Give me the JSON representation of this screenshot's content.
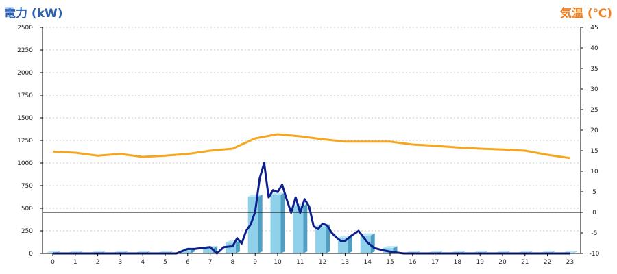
{
  "chart_data": {
    "type": "bar-line-combo",
    "left_axis_title": "電力 (kW)",
    "right_axis_title": "気温 (℃)",
    "left_ylim": [
      0,
      2500
    ],
    "left_ticks": [
      "0",
      "250",
      "500",
      "750",
      "1000",
      "1250",
      "1500",
      "1750",
      "2000",
      "2250",
      "2500"
    ],
    "right_ylim": [
      -10,
      45
    ],
    "right_ticks": [
      "-10",
      "-5",
      "0",
      "5",
      "10",
      "15",
      "20",
      "25",
      "30",
      "35",
      "40",
      "45"
    ],
    "x_ticks": [
      "0",
      "1",
      "2",
      "3",
      "4",
      "5",
      "6",
      "7",
      "8",
      "9",
      "10",
      "11",
      "12",
      "13",
      "14",
      "15",
      "16",
      "17",
      "18",
      "19",
      "20",
      "21",
      "22",
      "23"
    ],
    "grid": "horizontal dotted",
    "colors": {
      "left_title": "#2b5fb0",
      "right_title": "#f07d1e",
      "bar_face": "#8fd0ea",
      "bar_side": "#4e9fc3",
      "bar_top": "#bfe6f6",
      "power_line": "#0d1f8c",
      "temperature_line": "#f5a61e",
      "zero_temp_line": "#000000"
    },
    "hourly_power_bars": {
      "x": [
        0,
        1,
        2,
        3,
        4,
        5,
        6,
        7,
        8,
        9,
        10,
        11,
        12,
        13,
        14,
        15,
        16,
        17,
        18,
        19,
        20,
        21,
        22,
        23
      ],
      "values": [
        5,
        5,
        5,
        5,
        5,
        5,
        35,
        60,
        120,
        630,
        650,
        525,
        300,
        175,
        200,
        60,
        5,
        5,
        5,
        5,
        5,
        5,
        5,
        5
      ]
    },
    "power_line": {
      "x": [
        0,
        1,
        2,
        3,
        4,
        5,
        5.5,
        6,
        6.3,
        6.6,
        7,
        7.3,
        7.6,
        8,
        8.2,
        8.4,
        8.6,
        8.8,
        9,
        9.2,
        9.4,
        9.6,
        9.8,
        10,
        10.2,
        10.4,
        10.6,
        10.8,
        11,
        11.2,
        11.4,
        11.6,
        11.8,
        12,
        12.2,
        12.4,
        12.6,
        12.8,
        13,
        13.3,
        13.6,
        14,
        14.3,
        14.6,
        15,
        15.3,
        15.6,
        16,
        17,
        18,
        19,
        20,
        21,
        22,
        23
      ],
      "y": [
        0,
        0,
        0,
        0,
        0,
        0,
        0,
        50,
        50,
        60,
        70,
        0,
        70,
        80,
        170,
        110,
        250,
        320,
        460,
        830,
        1000,
        620,
        700,
        680,
        760,
        600,
        450,
        620,
        450,
        600,
        520,
        300,
        270,
        330,
        310,
        230,
        180,
        140,
        140,
        200,
        250,
        120,
        60,
        40,
        20,
        10,
        0,
        0,
        0,
        0,
        0,
        0,
        0,
        0,
        0
      ]
    },
    "temperature_line": {
      "x": [
        0,
        1,
        2,
        3,
        4,
        5,
        6,
        7,
        8,
        9,
        10,
        11,
        12,
        13,
        14,
        15,
        16,
        17,
        18,
        19,
        20,
        21,
        22,
        23
      ],
      "y": [
        14.8,
        14.5,
        13.8,
        14.2,
        13.5,
        13.8,
        14.2,
        15.0,
        15.5,
        18.0,
        19.0,
        18.5,
        17.8,
        17.2,
        17.2,
        17.2,
        16.5,
        16.2,
        15.8,
        15.5,
        15.3,
        15.0,
        14.0,
        13.2
      ]
    }
  }
}
